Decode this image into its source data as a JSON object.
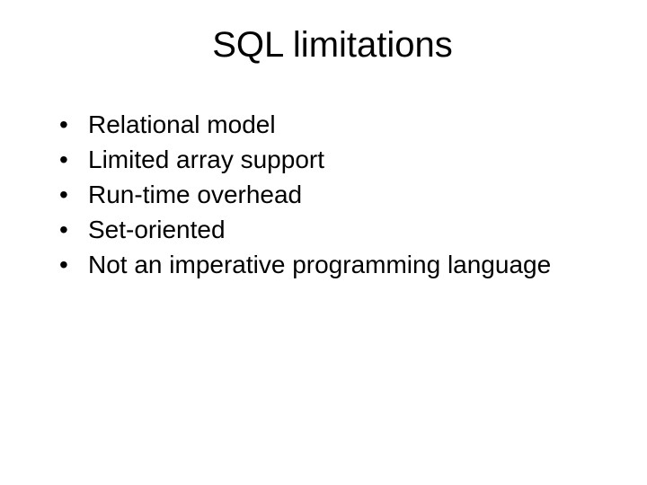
{
  "slide": {
    "title": "SQL limitations",
    "title_fontsize": 40,
    "title_color": "#000000",
    "body_fontsize": 28,
    "body_color": "#000000",
    "background_color": "#ffffff",
    "bullet_char": "•",
    "bullets": [
      "Relational model",
      "Limited array support",
      "Run-time overhead",
      "Set-oriented",
      "Not an imperative programming language"
    ]
  }
}
